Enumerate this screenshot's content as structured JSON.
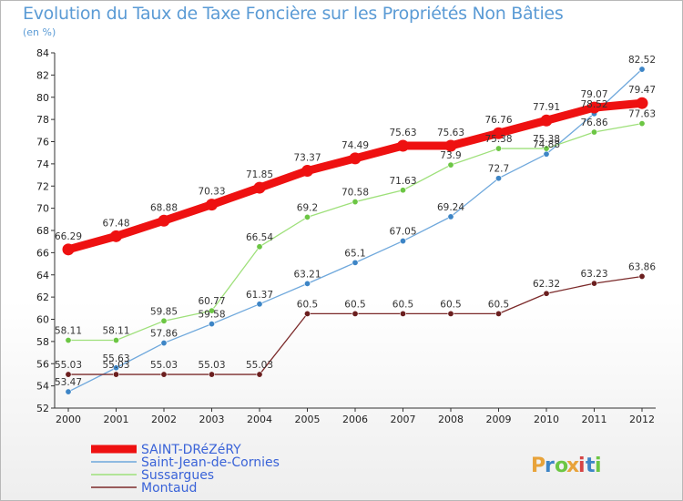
{
  "header": {
    "title": "Evolution du Taux de Taxe Foncière sur les Propriétés Non Bâties",
    "subtitle": "(en %)"
  },
  "logo_text": "Proxiti",
  "chart_data": {
    "type": "line",
    "title": "Evolution du Taux de Taxe Foncière sur les Propriétés Non Bâties",
    "ylabel": "(en %)",
    "xlabel": "",
    "x": [
      "2000",
      "2001",
      "2002",
      "2003",
      "2004",
      "2005",
      "2006",
      "2007",
      "2008",
      "2009",
      "2010",
      "2011",
      "2012"
    ],
    "ylim": [
      52,
      84
    ],
    "yticks": [
      52,
      54,
      56,
      58,
      60,
      62,
      64,
      66,
      68,
      70,
      72,
      74,
      76,
      78,
      80,
      82,
      84
    ],
    "grid": false,
    "legend_position": "bottom-left",
    "series": [
      {
        "name": "SAINT-DRéZéRY",
        "color": "#ee1111",
        "marker_color": "#ee1111",
        "width": "thick",
        "values": [
          66.29,
          67.48,
          68.88,
          70.33,
          71.85,
          73.37,
          74.49,
          75.63,
          75.63,
          76.76,
          77.91,
          79.07,
          79.47
        ],
        "labels": [
          "66.29",
          "67.48",
          "68.88",
          "70.33",
          "71.85",
          "73.37",
          "74.49",
          "75.63",
          "75.63",
          "76.76",
          "77.91",
          "79.07",
          "79.47"
        ]
      },
      {
        "name": "Saint-Jean-de-Cornies",
        "color": "#6fa8dc",
        "marker_color": "#3d85c6",
        "width": "thin",
        "values": [
          53.47,
          55.63,
          57.86,
          59.58,
          61.37,
          63.21,
          65.1,
          67.05,
          69.24,
          72.7,
          74.88,
          78.52,
          82.52
        ],
        "labels": [
          "53.47",
          "55.63",
          "57.86",
          "59.58",
          "61.37",
          "63.21",
          "65.1",
          "67.05",
          "69.24",
          "72.7",
          "74.88",
          "78.52",
          "82.52"
        ]
      },
      {
        "name": "Sussargues",
        "color": "#9ee07a",
        "marker_color": "#6cc644",
        "width": "thin",
        "values": [
          58.11,
          58.11,
          59.85,
          60.77,
          66.54,
          69.2,
          70.58,
          71.63,
          73.9,
          75.38,
          75.38,
          76.86,
          77.63
        ],
        "labels": [
          "58.11",
          "58.11",
          "59.85",
          "60.77",
          "66.54",
          "69.2",
          "70.58",
          "71.63",
          "73.9",
          "75.38",
          "75.38",
          "76.86",
          "77.63"
        ]
      },
      {
        "name": "Montaud",
        "color": "#7b2a2a",
        "marker_color": "#6b1f1f",
        "width": "thin",
        "values": [
          55.03,
          55.03,
          55.03,
          55.03,
          55.03,
          60.5,
          60.5,
          60.5,
          60.5,
          60.5,
          62.32,
          63.23,
          63.86
        ],
        "labels": [
          "55.03",
          "55.03",
          "55.03",
          "55.03",
          "55.03",
          "60.5",
          "60.5",
          "60.5",
          "60.5",
          "60.5",
          "62.32",
          "63.23",
          "63.86"
        ]
      }
    ]
  }
}
